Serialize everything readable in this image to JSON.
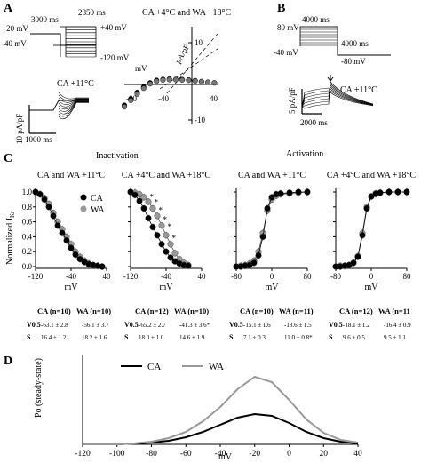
{
  "panels": {
    "A": {
      "letter": "A",
      "protocol": {
        "left_top": "+20 mV",
        "left_bottom": "-40 mV",
        "top_time": "3000 ms",
        "mid_time": "2850 ms",
        "right_top": "+40 mV",
        "right_bottom": "-120 mV"
      },
      "trace_label": "CA +11°C",
      "ybar": "10 pA/pF",
      "xbar": "1000 ms",
      "iv_title": "CA +4°C and WA +18°C",
      "iv_xlabel": "mV",
      "iv_ylabel": "pA/pF",
      "iv_xticks": [
        "-80",
        "-40",
        "40"
      ],
      "iv_yticks": [
        "10",
        "-10"
      ]
    },
    "B": {
      "letter": "B",
      "protocol": {
        "left_top": "80 mV",
        "left_bottom": "-40 mV",
        "top_time": "4000 ms",
        "right_time": "4000 ms",
        "right_bottom": "-80 mV"
      },
      "trace_label": "CA +11°C",
      "ybar": "5 pA/pF",
      "xbar": "2000 ms"
    },
    "C": {
      "letter": "C",
      "inact_title": "Inactivation",
      "act_title": "Activation",
      "ylabel": "Normalized I",
      "ylabel_sub": "Kr",
      "yticks": [
        "1.0",
        "0.8",
        "0.6",
        "0.4",
        "0.2",
        "0.0"
      ],
      "legend": [
        "CA",
        "WA"
      ],
      "subplots": [
        {
          "title": "CA and WA +11°C",
          "xticks": [
            "-120",
            "-40",
            "40"
          ],
          "xlabel": "mV",
          "table": {
            "head": [
              "CA (n=10)",
              "WA (n=10)"
            ],
            "rows": [
              [
                "V0.5",
                "-63.1 ± 2.8",
                "-56.1 ± 3.7"
              ],
              [
                "S",
                "16.4 ± 1.2",
                "18.2 ± 1.6"
              ]
            ]
          }
        },
        {
          "title": "CA +4°C and WA +18°C",
          "xticks": [
            "-120",
            "-40",
            "40"
          ],
          "xlabel": "mV",
          "stars": "*",
          "table": {
            "head": [
              "CA (n=12)",
              "WA (n=10)"
            ],
            "rows": [
              [
                "V0.5",
                "-65.2 ± 2.7",
                "-41.3 ± 3.6*"
              ],
              [
                "S",
                "18.0 ± 1.0",
                "14.6 ± 1.9"
              ]
            ]
          }
        },
        {
          "title": "CA and WA +11°C",
          "xticks": [
            "-80",
            "0",
            "80"
          ],
          "xlabel": "mV",
          "table": {
            "head": [
              "CA (n=10)",
              "WA (n=11)"
            ],
            "rows": [
              [
                "V0.5",
                "-15.1 ± 1.6",
                "-18.6 ± 1.5"
              ],
              [
                "S",
                "7.1 ± 0.3",
                "11.0 ± 0.8*"
              ]
            ]
          }
        },
        {
          "title": "CA +4°C and WA +18°C",
          "xticks": [
            "-80",
            "0",
            "80"
          ],
          "xlabel": "mV",
          "table": {
            "head": [
              "CA (n=12)",
              "WA (n=11"
            ],
            "rows": [
              [
                "V0.5",
                "-18.1 ± 1.2",
                "-16.4 ± 0.9"
              ],
              [
                "S",
                "9.6 ± 0.5",
                "9.5 ± 1.1"
              ]
            ]
          }
        }
      ]
    },
    "D": {
      "letter": "D",
      "legend": [
        "CA",
        "WA"
      ],
      "ylabel": "Po (steady-state)",
      "xlabel": "mV",
      "xticks": [
        "-120",
        "-100",
        "-80",
        "-60",
        "-40",
        "-20",
        "0",
        "20",
        "40"
      ]
    }
  },
  "colors": {
    "ca": "#000000",
    "wa": "#999999"
  },
  "chart_data": [
    {
      "type": "line",
      "panel": "A-iv",
      "title": "CA +4°C and WA +18°C",
      "xlabel": "mV",
      "ylabel": "pA/pF",
      "xlim": [
        -100,
        45
      ],
      "ylim": [
        -12,
        12
      ],
      "series": [
        {
          "name": "CA",
          "x": [
            -100,
            -90,
            -80,
            -70,
            -60,
            -50,
            -40,
            -30,
            -20,
            -10,
            0,
            10,
            20,
            30,
            40
          ],
          "y": [
            -6.5,
            -4.5,
            -2.5,
            -0.8,
            0.5,
            1.3,
            1.6,
            1.7,
            1.6,
            1.5,
            1.4,
            1.2,
            0.9,
            0.7,
            0.5
          ]
        },
        {
          "name": "WA",
          "x": [
            -100,
            -90,
            -80,
            -70,
            -60,
            -50,
            -40,
            -30,
            -20,
            -10,
            0,
            10,
            20,
            30,
            40
          ],
          "y": [
            -7,
            -5,
            -3,
            -1.2,
            0.2,
            1.0,
            1.4,
            1.5,
            1.5,
            1.4,
            1.3,
            1.1,
            0.9,
            0.7,
            0.5
          ]
        }
      ]
    },
    {
      "type": "line",
      "panel": "C-1",
      "title": "CA and WA +11°C",
      "xlabel": "mV",
      "ylabel": "Normalized IKr",
      "xlim": [
        -120,
        40
      ],
      "ylim": [
        0,
        1
      ],
      "series": [
        {
          "name": "CA",
          "x": [
            -120,
            -110,
            -100,
            -90,
            -80,
            -70,
            -60,
            -50,
            -40,
            -30,
            -20,
            -10,
            0,
            10,
            20,
            30
          ],
          "y": [
            1.0,
            0.97,
            0.9,
            0.8,
            0.68,
            0.55,
            0.45,
            0.35,
            0.25,
            0.16,
            0.1,
            0.06,
            0.03,
            0.02,
            0.01,
            0.0
          ]
        },
        {
          "name": "WA",
          "x": [
            -120,
            -110,
            -100,
            -90,
            -80,
            -70,
            -60,
            -50,
            -40,
            -30,
            -20,
            -10,
            0,
            10,
            20,
            30
          ],
          "y": [
            1.0,
            0.97,
            0.92,
            0.84,
            0.72,
            0.6,
            0.5,
            0.4,
            0.3,
            0.2,
            0.13,
            0.08,
            0.04,
            0.02,
            0.01,
            0.0
          ]
        }
      ]
    },
    {
      "type": "line",
      "panel": "C-2",
      "title": "CA +4°C and WA +18°C",
      "xlabel": "mV",
      "ylabel": "Normalized IKr",
      "xlim": [
        -120,
        40
      ],
      "ylim": [
        0,
        1
      ],
      "series": [
        {
          "name": "CA",
          "x": [
            -120,
            -110,
            -100,
            -90,
            -80,
            -70,
            -60,
            -50,
            -40,
            -30,
            -20,
            -10,
            0,
            10
          ],
          "y": [
            1.0,
            0.96,
            0.88,
            0.78,
            0.65,
            0.53,
            0.42,
            0.3,
            0.2,
            0.12,
            0.07,
            0.04,
            0.02,
            0.01
          ]
        },
        {
          "name": "WA",
          "x": [
            -120,
            -110,
            -100,
            -90,
            -80,
            -70,
            -60,
            -50,
            -40,
            -30,
            -20,
            -10,
            0,
            10
          ],
          "y": [
            1.0,
            0.99,
            0.97,
            0.93,
            0.87,
            0.78,
            0.68,
            0.55,
            0.42,
            0.3,
            0.18,
            0.1,
            0.05,
            0.02
          ]
        }
      ]
    },
    {
      "type": "line",
      "panel": "C-3",
      "title": "CA and WA +11°C",
      "xlabel": "mV",
      "ylabel": "Normalized IKr",
      "xlim": [
        -80,
        80
      ],
      "ylim": [
        0,
        1
      ],
      "series": [
        {
          "name": "CA",
          "x": [
            -80,
            -70,
            -60,
            -50,
            -40,
            -30,
            -20,
            -10,
            0,
            10,
            20,
            40,
            60,
            80
          ],
          "y": [
            0.0,
            0.0,
            0.01,
            0.02,
            0.05,
            0.15,
            0.4,
            0.78,
            0.93,
            0.97,
            0.98,
            0.99,
            1.0,
            1.0
          ]
        },
        {
          "name": "WA",
          "x": [
            -80,
            -70,
            -60,
            -50,
            -40,
            -30,
            -20,
            -10,
            0,
            10,
            20,
            40,
            60,
            80
          ],
          "y": [
            0.0,
            0.01,
            0.02,
            0.04,
            0.08,
            0.2,
            0.45,
            0.75,
            0.9,
            0.95,
            0.97,
            0.98,
            0.99,
            1.0
          ]
        }
      ]
    },
    {
      "type": "line",
      "panel": "C-4",
      "title": "CA +4°C and WA +18°C",
      "xlabel": "mV",
      "ylabel": "Normalized IKr",
      "xlim": [
        -80,
        80
      ],
      "ylim": [
        0,
        1
      ],
      "series": [
        {
          "name": "CA",
          "x": [
            -80,
            -70,
            -60,
            -50,
            -40,
            -30,
            -20,
            -10,
            0,
            10,
            20,
            40,
            60,
            80
          ],
          "y": [
            0.0,
            0.0,
            0.01,
            0.02,
            0.05,
            0.13,
            0.42,
            0.78,
            0.94,
            0.98,
            0.99,
            1.0,
            1.0,
            1.0
          ]
        },
        {
          "name": "WA",
          "x": [
            -80,
            -70,
            -60,
            -50,
            -40,
            -30,
            -20,
            -10,
            0,
            10,
            20,
            40,
            60,
            80
          ],
          "y": [
            0.0,
            0.01,
            0.01,
            0.02,
            0.05,
            0.14,
            0.45,
            0.8,
            0.94,
            0.97,
            0.99,
            1.0,
            1.0,
            1.0
          ]
        }
      ]
    },
    {
      "type": "line",
      "panel": "D",
      "xlabel": "mV",
      "ylabel": "Po (steady-state)",
      "xlim": [
        -120,
        40
      ],
      "ylim": [
        0,
        0.1
      ],
      "series": [
        {
          "name": "CA",
          "x": [
            -120,
            -100,
            -90,
            -80,
            -70,
            -60,
            -50,
            -40,
            -30,
            -20,
            -10,
            0,
            10,
            20,
            30,
            40
          ],
          "y": [
            0.0,
            0.0,
            0.001,
            0.002,
            0.004,
            0.008,
            0.014,
            0.022,
            0.03,
            0.034,
            0.032,
            0.024,
            0.014,
            0.007,
            0.003,
            0.001
          ]
        },
        {
          "name": "WA",
          "x": [
            -120,
            -100,
            -90,
            -80,
            -70,
            -60,
            -50,
            -40,
            -30,
            -20,
            -10,
            0,
            10,
            20,
            30,
            40
          ],
          "y": [
            0.0,
            0.0,
            0.001,
            0.003,
            0.007,
            0.014,
            0.026,
            0.042,
            0.062,
            0.076,
            0.07,
            0.05,
            0.028,
            0.013,
            0.005,
            0.002
          ]
        }
      ]
    }
  ]
}
